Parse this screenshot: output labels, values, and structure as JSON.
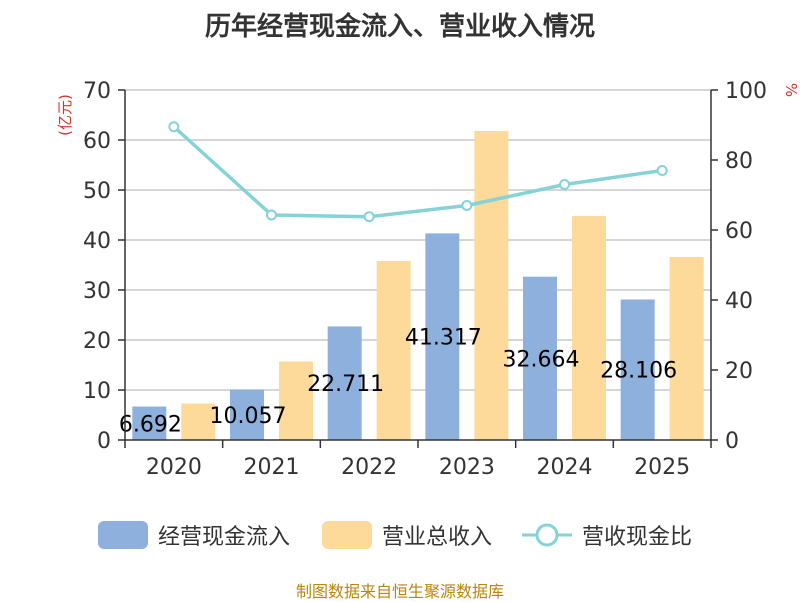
{
  "chart_data": {
    "type": "bar",
    "title": "历年经营现金流入、营业收入情况",
    "categories": [
      "2020",
      "2021",
      "2022",
      "2023",
      "2024",
      "2025"
    ],
    "series": [
      {
        "name": "经营现金流入",
        "type": "bar",
        "axis": "left",
        "color": "#8eb0dd",
        "values": [
          6.692,
          10.057,
          22.711,
          41.317,
          32.664,
          28.106
        ],
        "data_labels": [
          "6.692",
          "10.057",
          "22.711",
          "41.317",
          "32.664",
          "28.106"
        ]
      },
      {
        "name": "营业总收入",
        "type": "bar",
        "axis": "left",
        "color": "#fdd99a",
        "values": [
          7.3,
          15.7,
          35.8,
          61.8,
          44.8,
          36.6
        ]
      },
      {
        "name": "营收现金比",
        "type": "line",
        "axis": "right",
        "color": "#85d3d6",
        "values": [
          89.5,
          64.3,
          63.8,
          67.0,
          73.0,
          77.0
        ]
      }
    ],
    "ylabel_left": "(亿元)",
    "ylabel_right": "%",
    "ylim_left": [
      0,
      70
    ],
    "ylim_right": [
      0,
      100
    ],
    "yticks_left": [
      0,
      10,
      20,
      30,
      40,
      50,
      60,
      70
    ],
    "yticks_right": [
      0,
      20,
      40,
      60,
      80,
      100
    ],
    "grid": true,
    "legend_position": "bottom"
  },
  "footer": {
    "source": "制图数据来自恒生聚源数据库"
  }
}
